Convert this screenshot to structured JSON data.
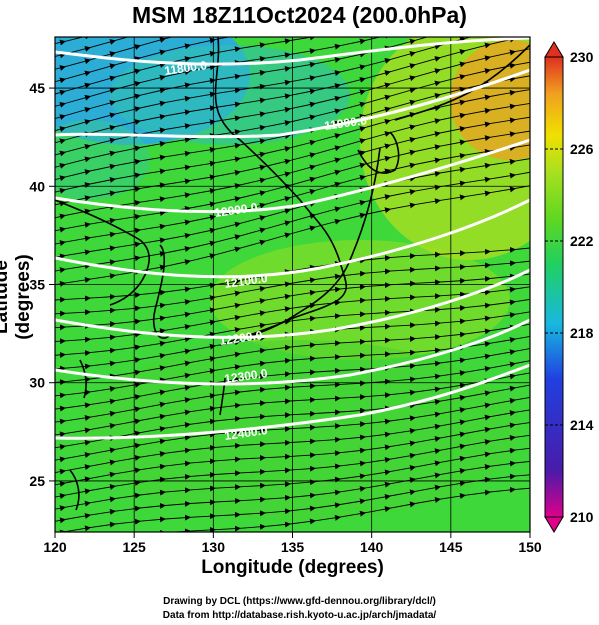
{
  "title": "MSM 18Z11Oct2024 (200.0hPa)",
  "x_axis": {
    "label": "Longitude (degrees)",
    "ticks": [
      "120",
      "125",
      "130",
      "135",
      "140",
      "145",
      "150"
    ],
    "range": [
      120,
      150
    ]
  },
  "y_axis": {
    "label": "Latitude  (degrees)",
    "ticks": [
      "25",
      "30",
      "35",
      "40",
      "45"
    ],
    "range": [
      22.4,
      47.6
    ]
  },
  "colorbar": {
    "ticks": [
      "230",
      "226",
      "222",
      "218",
      "214",
      "210"
    ],
    "range": [
      210,
      230
    ],
    "colors": [
      "#e0008a",
      "#4a1ba8",
      "#2040e0",
      "#18b8e0",
      "#20d060",
      "#60d820",
      "#a8e020",
      "#f0e000",
      "#f0a020",
      "#e03020"
    ]
  },
  "contours": {
    "color": "#ffffff",
    "labels": [
      "11800.0",
      "11900.0",
      "12000.0",
      "12100.0",
      "12200.0",
      "12300.0",
      "12400.0"
    ]
  },
  "credits": {
    "line1": "Drawing by DCL (https://www.gfd-dennou.org/library/dcl/)",
    "line2": "Data from http://database.rish.kyoto-u.ac.jp/arch/jmadata/"
  }
}
